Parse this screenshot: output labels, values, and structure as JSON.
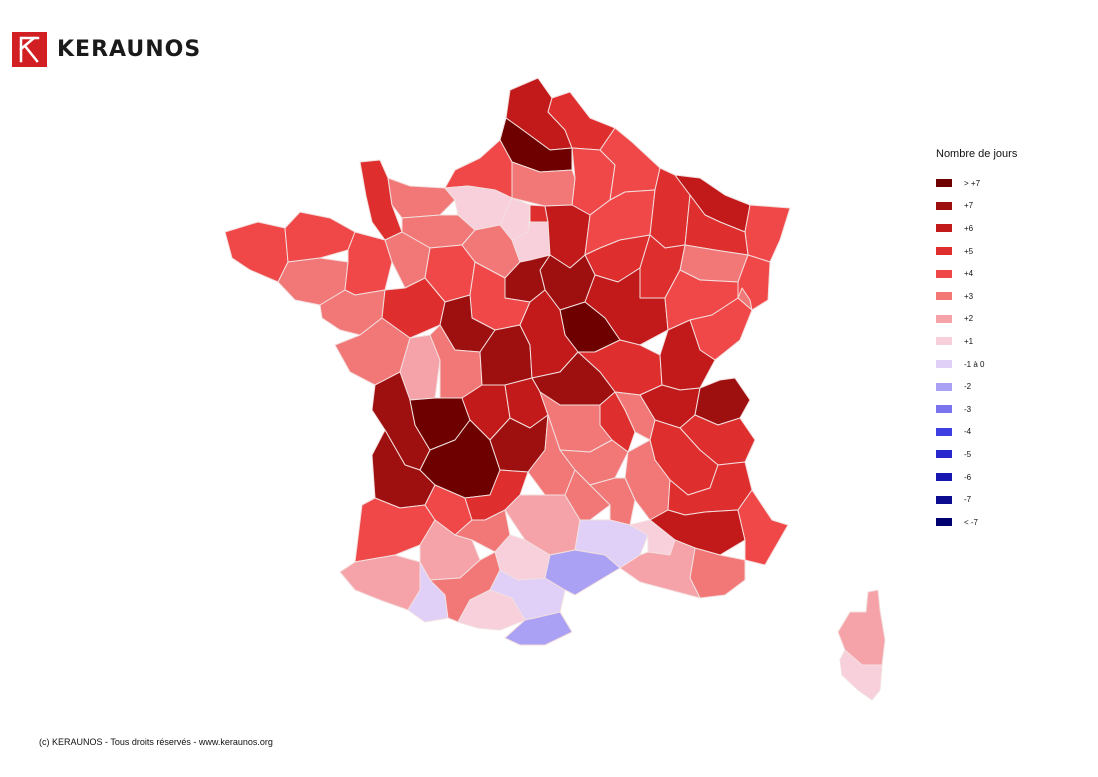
{
  "brand": {
    "name": "KERAUNOS",
    "logo_color": "#d11f24"
  },
  "legend": {
    "title": "Nombre de jours",
    "items": [
      {
        "label": "> +7",
        "color": "#6e0000"
      },
      {
        "label": "+7",
        "color": "#9e1010"
      },
      {
        "label": "+6",
        "color": "#c21a1a"
      },
      {
        "label": "+5",
        "color": "#de2e2e"
      },
      {
        "label": "+4",
        "color": "#f04848"
      },
      {
        "label": "+3",
        "color": "#f27878"
      },
      {
        "label": "+2",
        "color": "#f5a3a8"
      },
      {
        "label": "+1",
        "color": "#f8d0dc"
      },
      {
        "label": "-1 à 0",
        "color": "#e0d0f8"
      },
      {
        "label": "-2",
        "color": "#aaa0f4"
      },
      {
        "label": "-3",
        "color": "#7c74ee"
      },
      {
        "label": "-4",
        "color": "#4040e2"
      },
      {
        "label": "-5",
        "color": "#2828cc"
      },
      {
        "label": "-6",
        "color": "#1818b0"
      },
      {
        "label": "-7",
        "color": "#0c0c90"
      },
      {
        "label": "< -7",
        "color": "#000070"
      }
    ]
  },
  "map": {
    "regions": [
      {
        "name": "Nord",
        "class": "+6"
      },
      {
        "name": "Pas-de-Calais",
        "class": "+5"
      },
      {
        "name": "Somme",
        "class": "> +7"
      },
      {
        "name": "Aisne",
        "class": "+4"
      },
      {
        "name": "Ardennes",
        "class": "+4"
      },
      {
        "name": "Oise",
        "class": "+3"
      },
      {
        "name": "Seine-Maritime",
        "class": "+4"
      },
      {
        "name": "Manche",
        "class": "+5"
      },
      {
        "name": "Calvados",
        "class": "+3"
      },
      {
        "name": "Eure",
        "class": "+1"
      },
      {
        "name": "Orne",
        "class": "+3"
      },
      {
        "name": "Finistère",
        "class": "+4"
      },
      {
        "name": "Côtes-d'Armor",
        "class": "+4"
      },
      {
        "name": "Morbihan",
        "class": "+3"
      },
      {
        "name": "Ille-et-Vilaine",
        "class": "+4"
      },
      {
        "name": "Mayenne",
        "class": "+3"
      },
      {
        "name": "Sarthe",
        "class": "+4"
      },
      {
        "name": "Eure-et-Loir",
        "class": "+3"
      },
      {
        "name": "Yvelines",
        "class": "+1"
      },
      {
        "name": "Paris",
        "class": "+5"
      },
      {
        "name": "Essonne",
        "class": "+1"
      },
      {
        "name": "Seine-et-Marne",
        "class": "+6"
      },
      {
        "name": "Marne",
        "class": "+4"
      },
      {
        "name": "Meuse",
        "class": "+5"
      },
      {
        "name": "Moselle",
        "class": "+6"
      },
      {
        "name": "Bas-Rhin",
        "class": "+4"
      },
      {
        "name": "Meurthe-et-Moselle",
        "class": "+5"
      },
      {
        "name": "Vosges",
        "class": "+3"
      },
      {
        "name": "Haut-Rhin",
        "class": "+4"
      },
      {
        "name": "Aube",
        "class": "+5"
      },
      {
        "name": "Haute-Marne",
        "class": "+5"
      },
      {
        "name": "Yonne",
        "class": "+7"
      },
      {
        "name": "Loiret",
        "class": "+7"
      },
      {
        "name": "Côte-d'Or",
        "class": "+6"
      },
      {
        "name": "Haute-Saône",
        "class": "+4"
      },
      {
        "name": "Doubs",
        "class": "+4"
      },
      {
        "name": "Territoire de Belfort",
        "class": "+3"
      },
      {
        "name": "Nièvre",
        "class": "> +7"
      },
      {
        "name": "Loir-et-Cher",
        "class": "+4"
      },
      {
        "name": "Loire-Atlantique",
        "class": "+3"
      },
      {
        "name": "Maine-et-Loire",
        "class": "+5"
      },
      {
        "name": "Indre-et-Loire",
        "class": "+7"
      },
      {
        "name": "Vendée",
        "class": "+3"
      },
      {
        "name": "Deux-Sèvres",
        "class": "+2"
      },
      {
        "name": "Vienne",
        "class": "+3"
      },
      {
        "name": "Indre",
        "class": "+7"
      },
      {
        "name": "Cher",
        "class": "+6"
      },
      {
        "name": "Saône-et-Loire",
        "class": "+5"
      },
      {
        "name": "Jura",
        "class": "+6"
      },
      {
        "name": "Allier",
        "class": "+7"
      },
      {
        "name": "Ain",
        "class": "+6"
      },
      {
        "name": "Haute-Savoie",
        "class": "+7"
      },
      {
        "name": "Savoie",
        "class": "+5"
      },
      {
        "name": "Rhône",
        "class": "+3"
      },
      {
        "name": "Loire",
        "class": "+5"
      },
      {
        "name": "Charente-Maritime",
        "class": "+7"
      },
      {
        "name": "Charente",
        "class": "> +7"
      },
      {
        "name": "Haute-Vienne",
        "class": "+6"
      },
      {
        "name": "Creuse",
        "class": "+6"
      },
      {
        "name": "Puy-de-Dôme",
        "class": "+3"
      },
      {
        "name": "Isère",
        "class": "+5"
      },
      {
        "name": "Gironde",
        "class": "+7"
      },
      {
        "name": "Dordogne",
        "class": "> +7"
      },
      {
        "name": "Corrèze",
        "class": "+7"
      },
      {
        "name": "Cantal",
        "class": "+3"
      },
      {
        "name": "Haute-Loire",
        "class": "+3"
      },
      {
        "name": "Drôme",
        "class": "+3"
      },
      {
        "name": "Hautes-Alpes",
        "class": "+5"
      },
      {
        "name": "Landes",
        "class": "+4"
      },
      {
        "name": "Lot-et-Garonne",
        "class": "+4"
      },
      {
        "name": "Lot",
        "class": "+5"
      },
      {
        "name": "Aveyron",
        "class": "+2"
      },
      {
        "name": "Lozère",
        "class": "+3"
      },
      {
        "name": "Ardèche",
        "class": "+3"
      },
      {
        "name": "Alpes-de-Haute-Provence",
        "class": "+6"
      },
      {
        "name": "Alpes-Maritimes",
        "class": "+4"
      },
      {
        "name": "Pyrénées-Atlantiques",
        "class": "+2"
      },
      {
        "name": "Gers",
        "class": "+2"
      },
      {
        "name": "Tarn-et-Garonne",
        "class": "+3"
      },
      {
        "name": "Tarn",
        "class": "+1"
      },
      {
        "name": "Gard",
        "class": "-1 à 0"
      },
      {
        "name": "Vaucluse",
        "class": "+1"
      },
      {
        "name": "Var",
        "class": "+3"
      },
      {
        "name": "Bouches-du-Rhône",
        "class": "+2"
      },
      {
        "name": "Hautes-Pyrénées",
        "class": "-1 à 0"
      },
      {
        "name": "Haute-Garonne",
        "class": "+3"
      },
      {
        "name": "Ariège",
        "class": "+1"
      },
      {
        "name": "Aude",
        "class": "-1 à 0"
      },
      {
        "name": "Hérault",
        "class": "-2"
      },
      {
        "name": "Pyrénées-Orientales",
        "class": "-2"
      },
      {
        "name": "Haute-Corse",
        "class": "+2"
      },
      {
        "name": "Corse-du-Sud",
        "class": "+1"
      }
    ]
  },
  "footer": {
    "text": "(c) KERAUNOS - Tous droits réservés - www.keraunos.org"
  }
}
